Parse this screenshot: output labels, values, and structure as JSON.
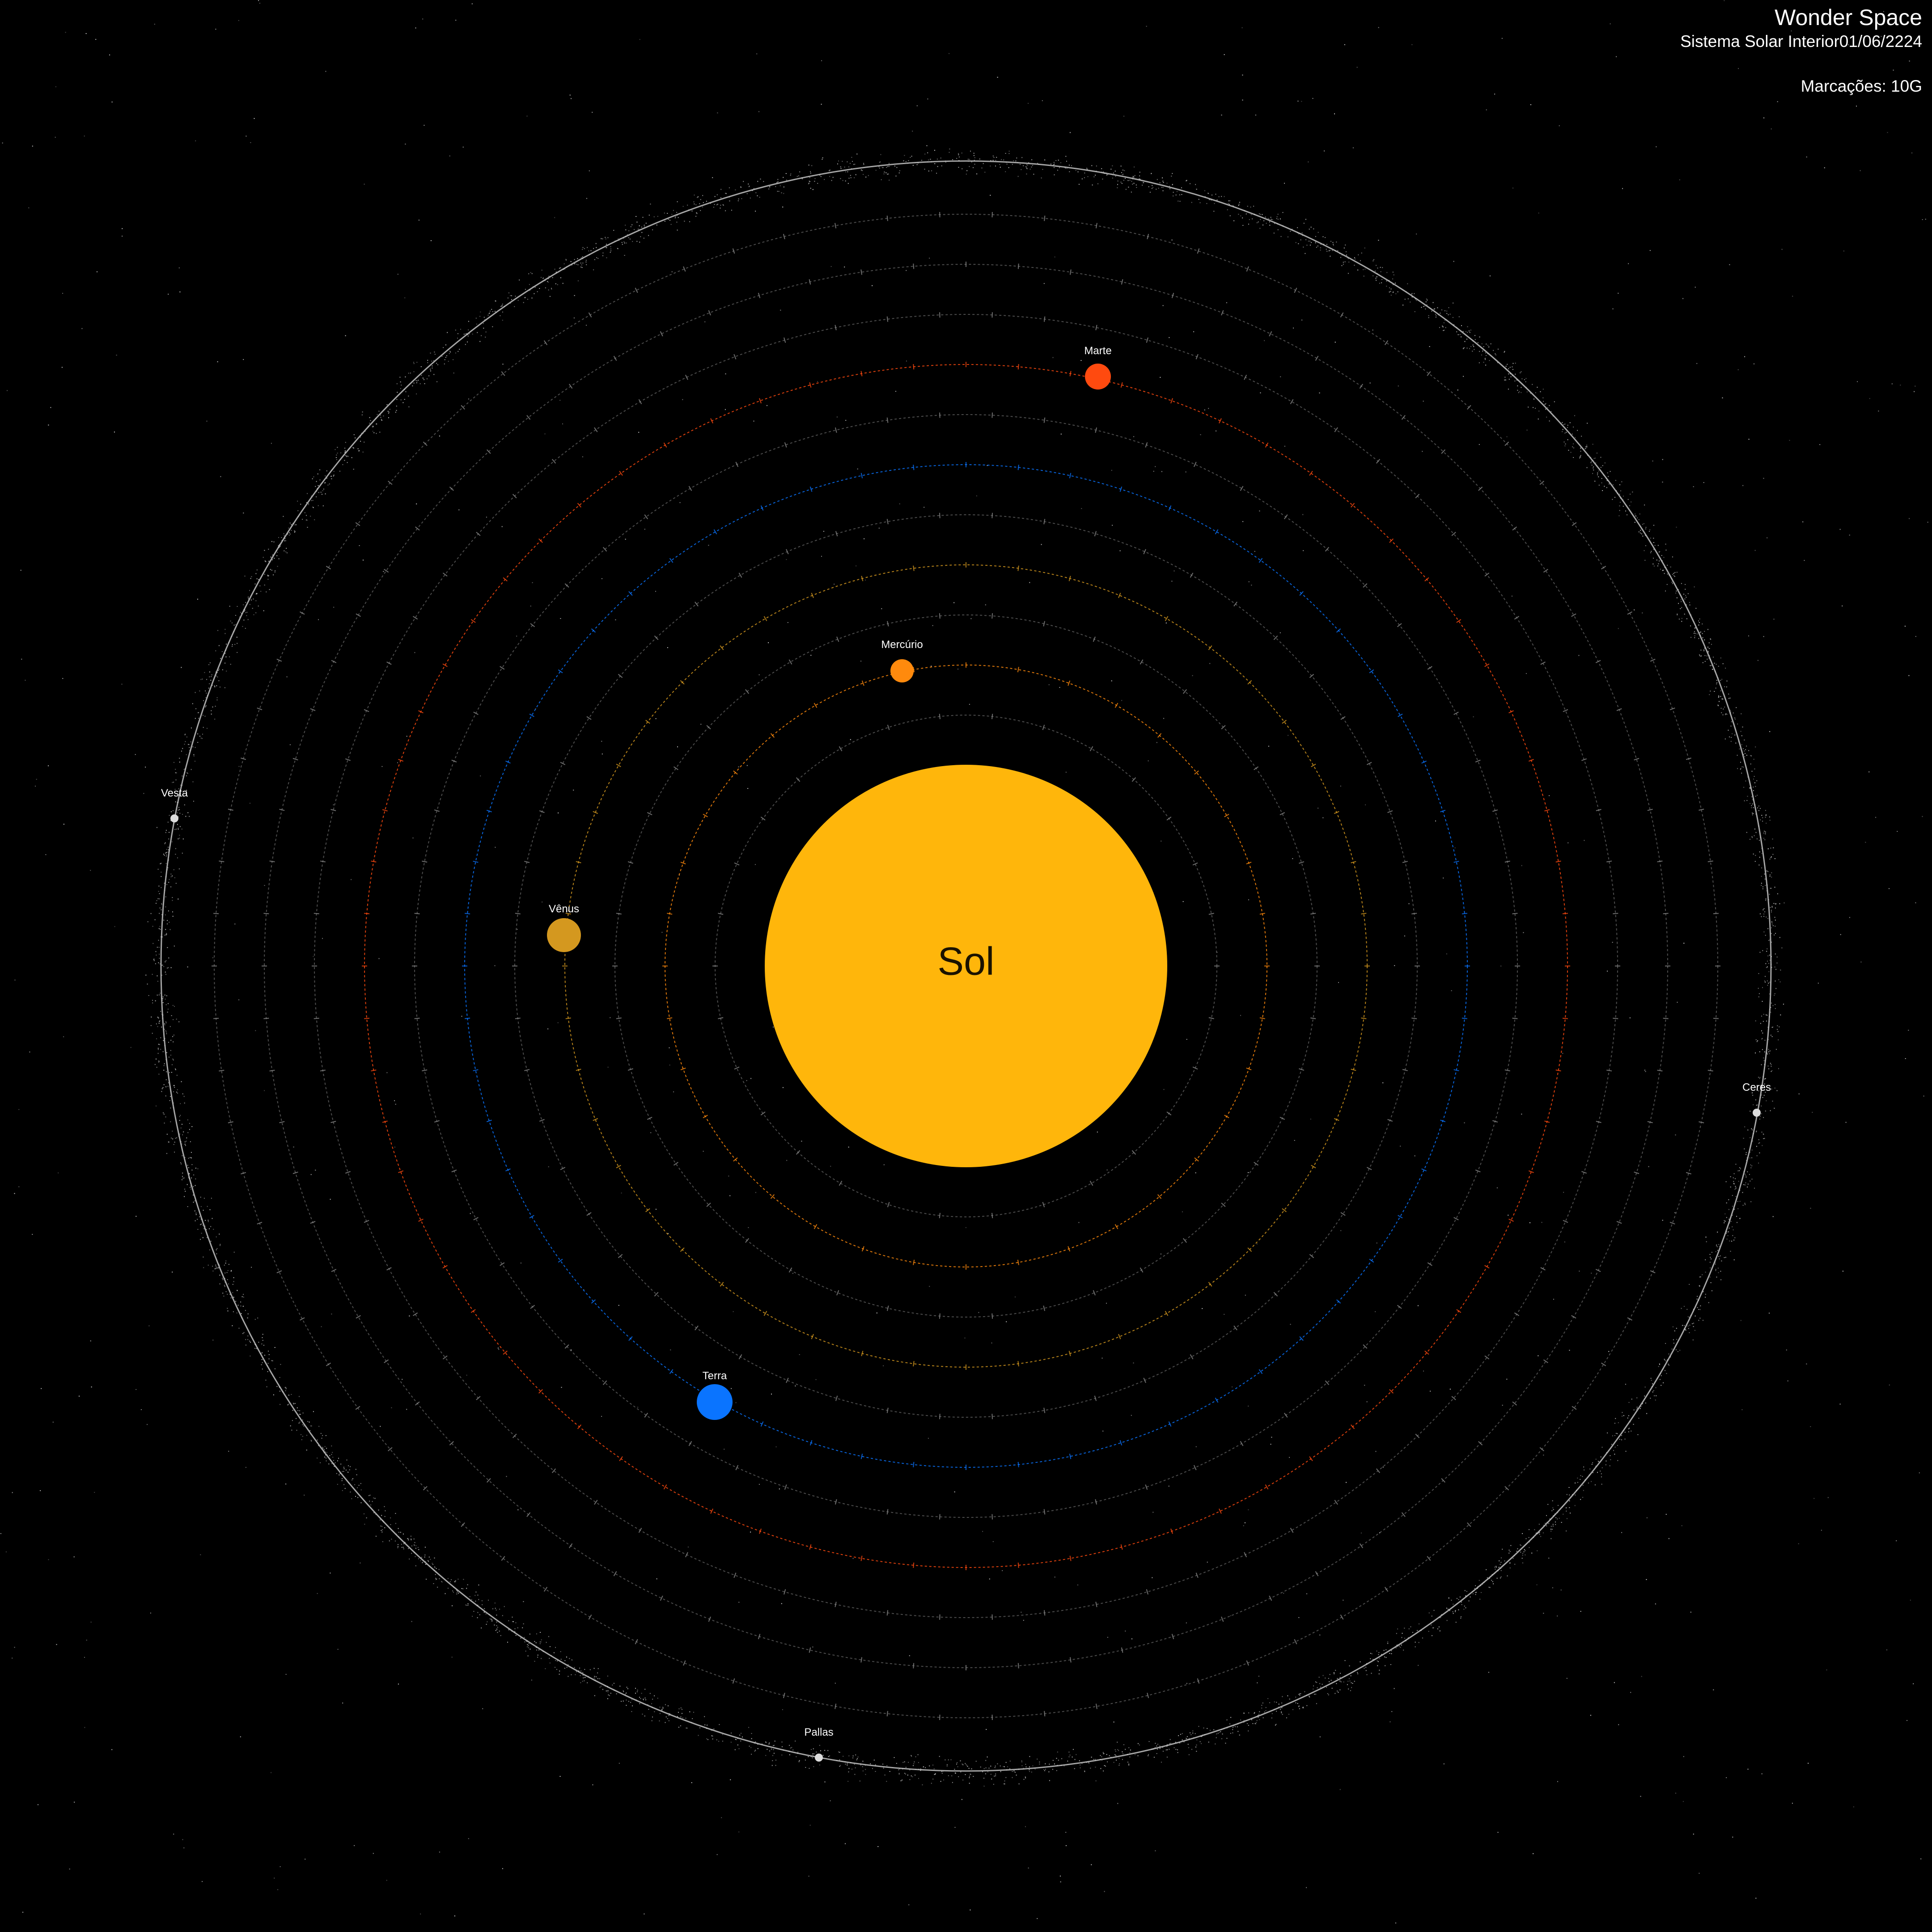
{
  "header": {
    "title": "Wonder Space",
    "subtitle": "Sistema Solar Interior01/06/2224",
    "markings": "Marcações: 10G"
  },
  "sun": {
    "label": "Sol",
    "color": "#FFB60B"
  },
  "planets": [
    {
      "name": "Mercúrio",
      "color": "#FF8A0D"
    },
    {
      "name": "Vênus",
      "color": "#D4981F"
    },
    {
      "name": "Terra",
      "color": "#0A74FF"
    },
    {
      "name": "Marte",
      "color": "#FF4A0F"
    }
  ],
  "asteroids": [
    {
      "name": "Vesta",
      "color": "#DDDDDD"
    },
    {
      "name": "Ceres",
      "color": "#DDDDDD"
    },
    {
      "name": "Pallas",
      "color": "#DDDDDD"
    }
  ],
  "colors": {
    "background": "#000000",
    "orbit_default": "#8a8a8a",
    "asteroid_belt": "#cfcfcf",
    "text": "#FFFFFF"
  }
}
